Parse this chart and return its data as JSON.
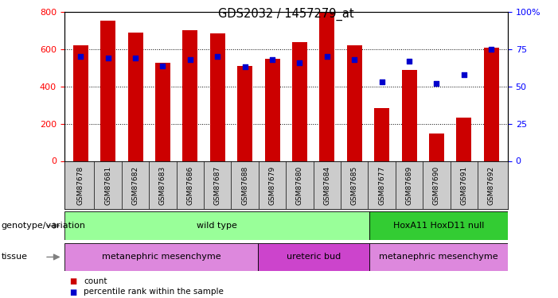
{
  "title": "GDS2032 / 1457279_at",
  "samples": [
    "GSM87678",
    "GSM87681",
    "GSM87682",
    "GSM87683",
    "GSM87686",
    "GSM87687",
    "GSM87688",
    "GSM87679",
    "GSM87680",
    "GSM87684",
    "GSM87685",
    "GSM87677",
    "GSM87689",
    "GSM87690",
    "GSM87691",
    "GSM87692"
  ],
  "counts": [
    620,
    755,
    690,
    525,
    700,
    685,
    510,
    550,
    640,
    795,
    620,
    285,
    490,
    148,
    232,
    610
  ],
  "percentile_ranks": [
    70,
    69,
    69,
    64,
    68,
    70,
    63,
    68,
    66,
    70,
    68,
    53,
    67,
    52,
    58,
    75
  ],
  "bar_color": "#cc0000",
  "dot_color": "#0000cc",
  "ylim_left": [
    0,
    800
  ],
  "ylim_right": [
    0,
    100
  ],
  "yticks_left": [
    0,
    200,
    400,
    600,
    800
  ],
  "yticks_right": [
    0,
    25,
    50,
    75,
    100
  ],
  "genotype_groups": [
    {
      "label": "wild type",
      "start": 0,
      "end": 11,
      "color": "#99ff99"
    },
    {
      "label": "HoxA11 HoxD11 null",
      "start": 11,
      "end": 16,
      "color": "#33cc33"
    }
  ],
  "tissue_groups": [
    {
      "label": "metanephric mesenchyme",
      "start": 0,
      "end": 7,
      "color": "#dd88dd"
    },
    {
      "label": "ureteric bud",
      "start": 7,
      "end": 11,
      "color": "#cc44cc"
    },
    {
      "label": "metanephric mesenchyme",
      "start": 11,
      "end": 16,
      "color": "#dd88dd"
    }
  ],
  "xlabels_bg": "#cccccc",
  "geno_label": "genotype/variation",
  "tissue_label": "tissue",
  "legend": [
    {
      "label": "count",
      "color": "#cc0000"
    },
    {
      "label": "percentile rank within the sample",
      "color": "#0000cc"
    }
  ]
}
